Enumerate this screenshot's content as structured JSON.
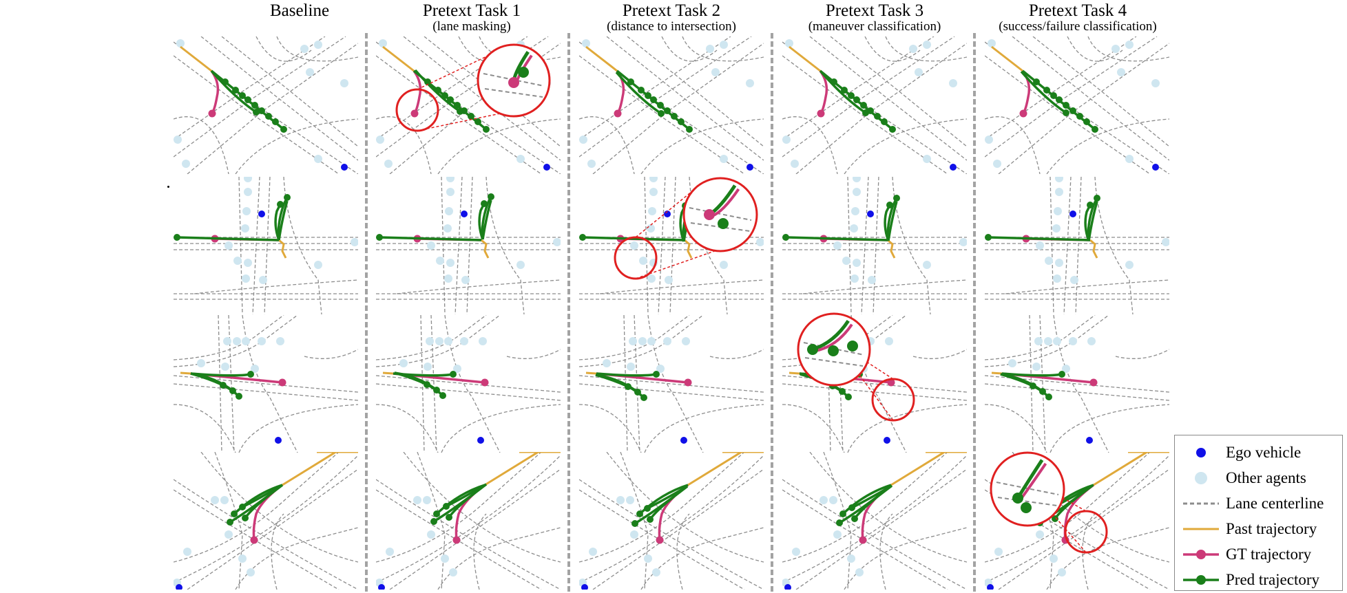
{
  "columns": [
    {
      "title": "Baseline",
      "subtitle": ""
    },
    {
      "title": "Pretext Task 1",
      "subtitle": "(lane masking)"
    },
    {
      "title": "Pretext Task 2",
      "subtitle": "(distance to intersection)"
    },
    {
      "title": "Pretext Task 3",
      "subtitle": "(maneuver classification)"
    },
    {
      "title": "Pretext Task 4",
      "subtitle": "(success/failure classification)"
    }
  ],
  "legend": {
    "items": [
      {
        "label": "Ego vehicle",
        "symbol": "ego-dot"
      },
      {
        "label": "Other agents",
        "symbol": "agent-dot"
      },
      {
        "label": "Lane centerline",
        "symbol": "dashed-line"
      },
      {
        "label": "Past trajectory",
        "symbol": "past-line"
      },
      {
        "label": "GT trajectory",
        "symbol": "gt-line"
      },
      {
        "label": "Pred trajectory",
        "symbol": "pred-line"
      }
    ]
  },
  "colors": {
    "ego": "#1010e8",
    "agent": "#cfe6f0",
    "lane": "#8c8c8c",
    "past": "#e0a93a",
    "gt": "#cc3a78",
    "pred": "#1a7f1a",
    "zoom": "#e02020",
    "separator": "#a3a3a3"
  },
  "zoom_callouts": [
    {
      "row": 1,
      "column": 2
    },
    {
      "row": 2,
      "column": 3
    },
    {
      "row": 3,
      "column": 4
    },
    {
      "row": 4,
      "column": 5
    }
  ]
}
